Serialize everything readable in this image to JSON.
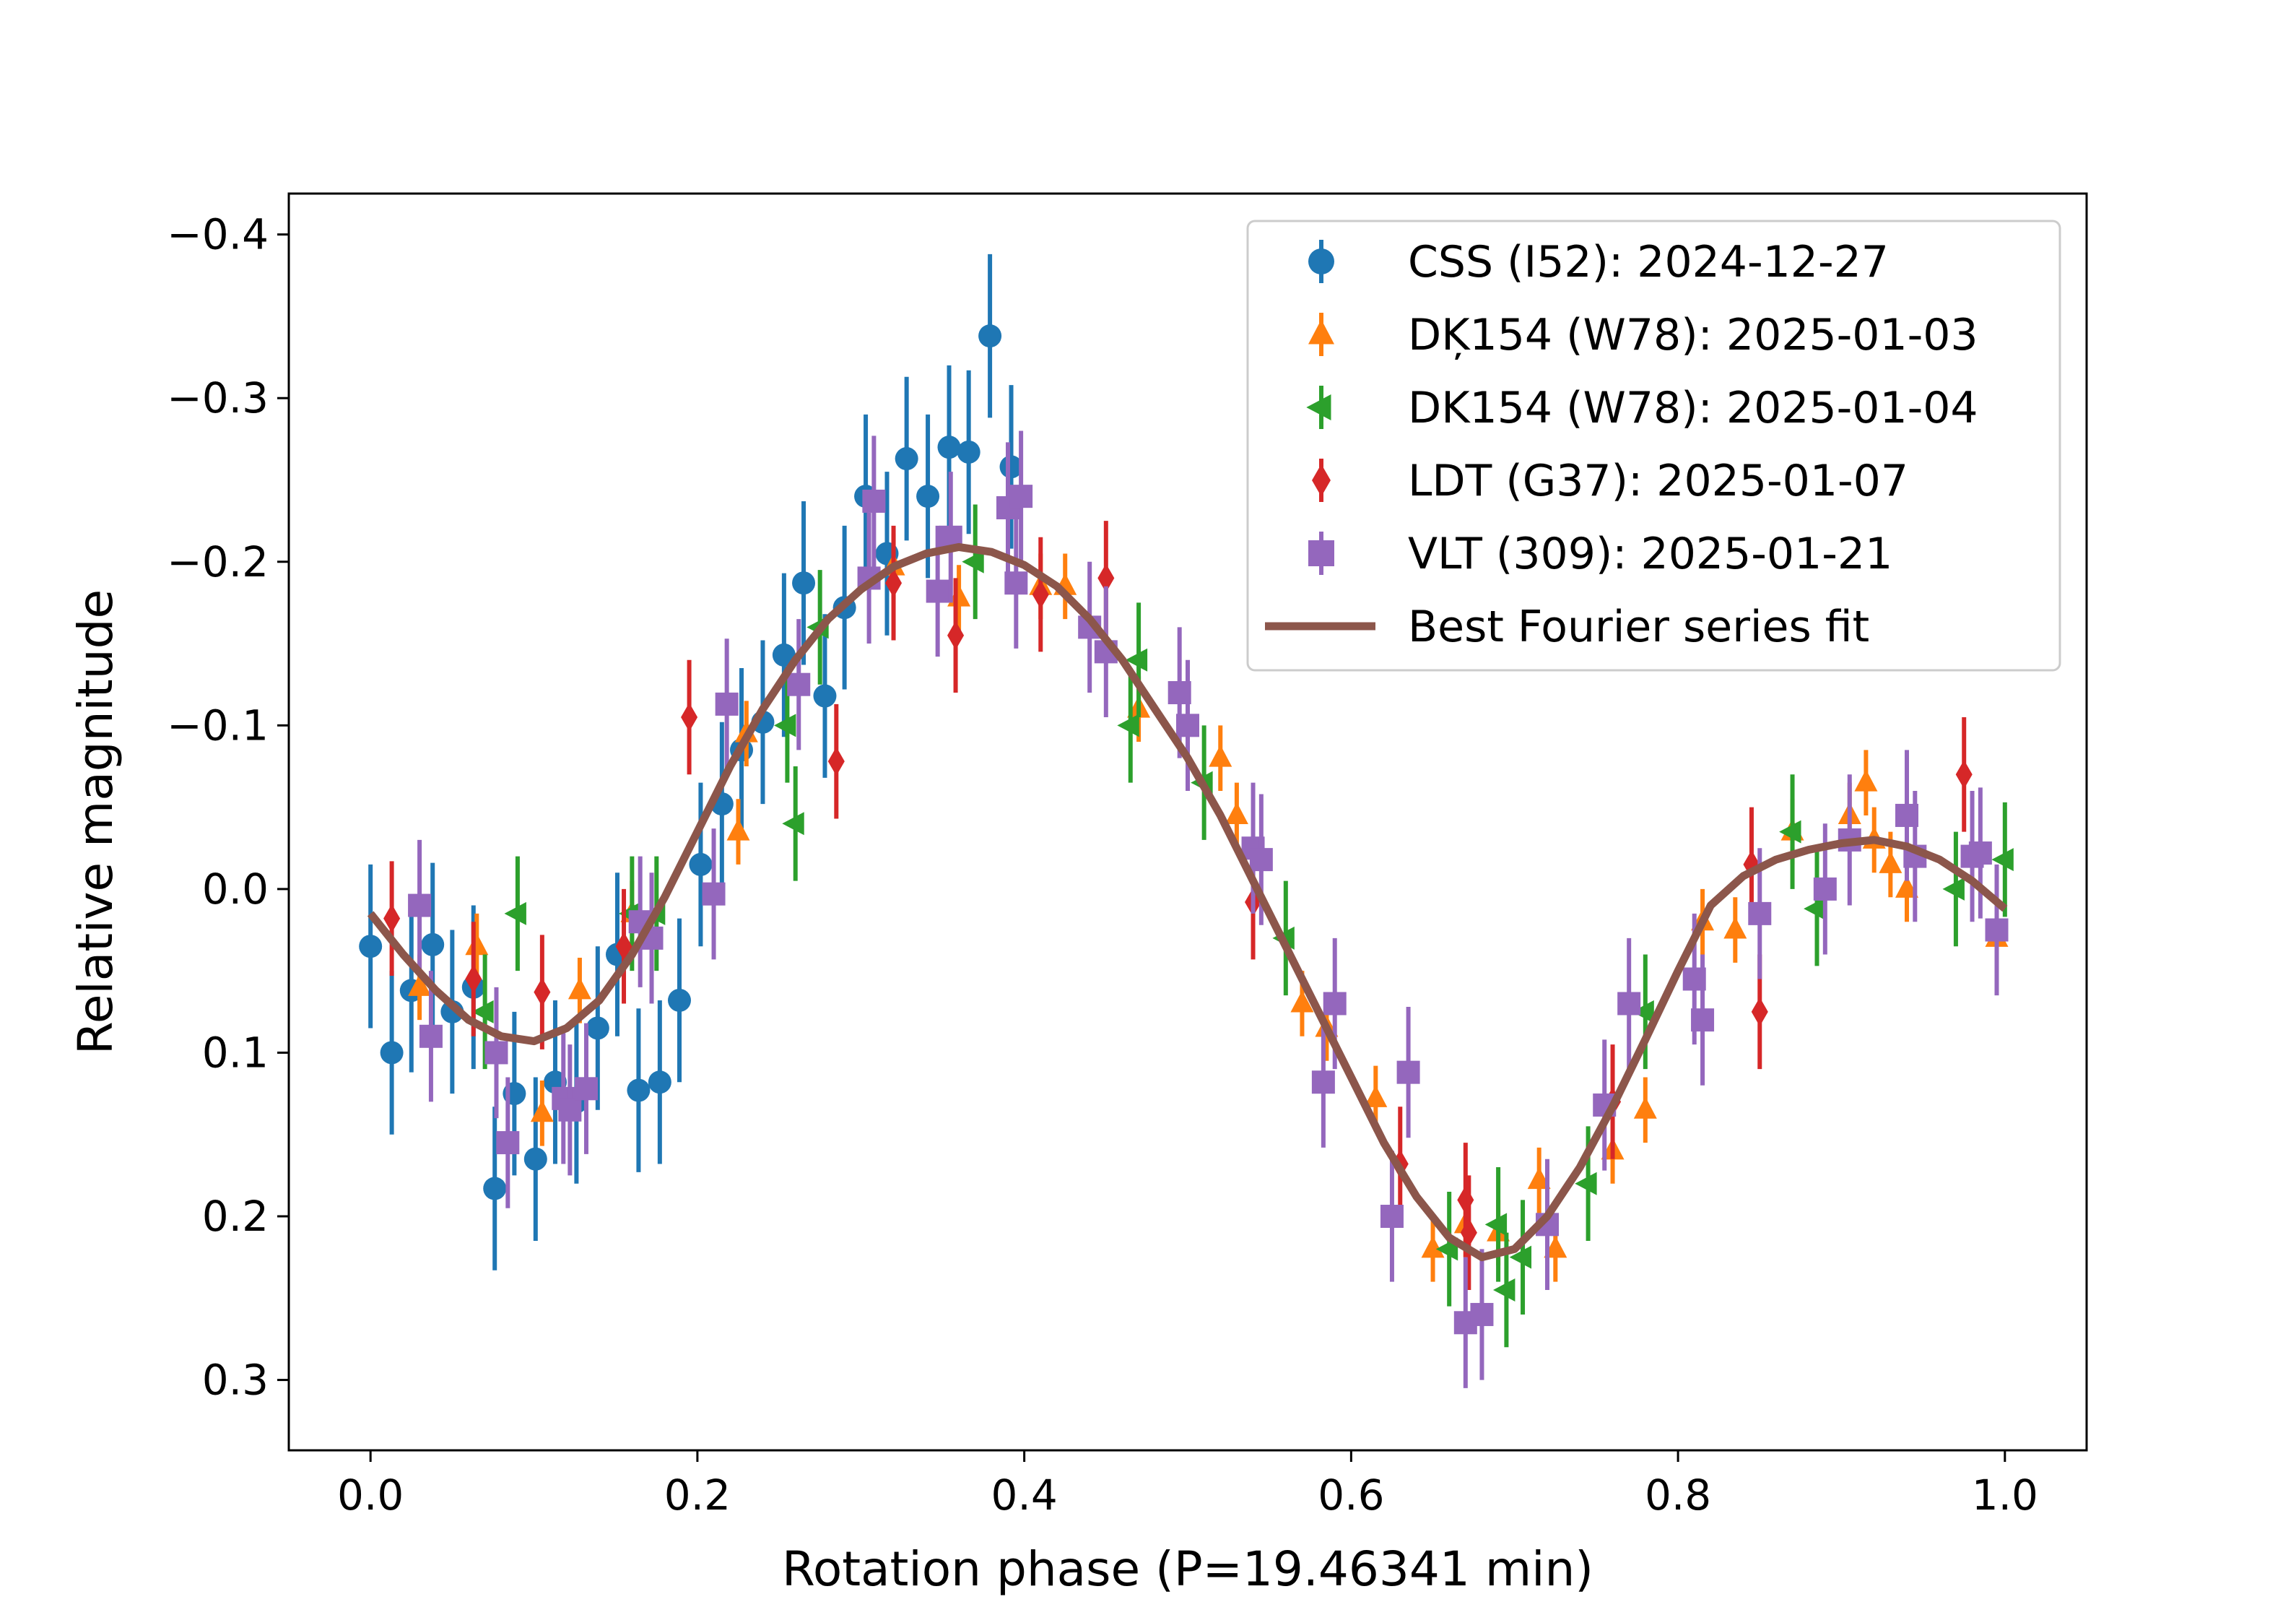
{
  "chart_data": {
    "type": "scatter",
    "title": "",
    "xlabel": "Rotation phase (P=19.46341 min)",
    "ylabel": "Relative magnitude",
    "xlim": [
      -0.05,
      1.05
    ],
    "ylim": [
      0.343,
      -0.425
    ],
    "y_inverted": true,
    "xticks": [
      0.0,
      0.2,
      0.4,
      0.6,
      0.8,
      1.0
    ],
    "xtick_labels": [
      "0.0",
      "0.2",
      "0.4",
      "0.6",
      "0.8",
      "1.0"
    ],
    "yticks": [
      -0.4,
      -0.3,
      -0.2,
      -0.1,
      0.0,
      0.1,
      0.2,
      0.3
    ],
    "ytick_labels": [
      "−0.4",
      "−0.3",
      "−0.2",
      "−0.1",
      "0.0",
      "0.1",
      "0.2",
      "0.3"
    ],
    "grid": false,
    "legend_position": "top-right",
    "series": [
      {
        "name": "CSS (I52): 2024-12-27",
        "marker": "circle",
        "color": "#1f77b4",
        "err": 0.05,
        "points": [
          [
            0.0,
            0.035
          ],
          [
            0.013,
            0.1
          ],
          [
            0.025,
            0.062
          ],
          [
            0.038,
            0.034
          ],
          [
            0.05,
            0.075
          ],
          [
            0.063,
            0.06
          ],
          [
            0.076,
            0.183
          ],
          [
            0.088,
            0.125
          ],
          [
            0.101,
            0.165
          ],
          [
            0.113,
            0.118
          ],
          [
            0.126,
            0.13
          ],
          [
            0.139,
            0.085
          ],
          [
            0.151,
            0.04
          ],
          [
            0.164,
            0.123
          ],
          [
            0.177,
            0.118
          ],
          [
            0.189,
            0.068
          ],
          [
            0.202,
            -0.015
          ],
          [
            0.215,
            -0.052
          ],
          [
            0.227,
            -0.085
          ],
          [
            0.24,
            -0.102
          ],
          [
            0.253,
            -0.143
          ],
          [
            0.265,
            -0.187
          ],
          [
            0.278,
            -0.118
          ],
          [
            0.29,
            -0.172
          ],
          [
            0.303,
            -0.24
          ],
          [
            0.316,
            -0.205
          ],
          [
            0.328,
            -0.263
          ],
          [
            0.341,
            -0.24
          ],
          [
            0.354,
            -0.27
          ],
          [
            0.366,
            -0.267
          ],
          [
            0.379,
            -0.338
          ],
          [
            0.392,
            -0.258
          ]
        ]
      },
      {
        "name": "DĶ154 (W78): 2025-01-03",
        "marker": "triangle-up",
        "color": "#ff7f0e",
        "err": 0.02,
        "points": [
          [
            0.03,
            0.06
          ],
          [
            0.065,
            0.035
          ],
          [
            0.105,
            0.137
          ],
          [
            0.128,
            0.062
          ],
          [
            0.16,
            0.015
          ],
          [
            0.225,
            -0.035
          ],
          [
            0.23,
            -0.095
          ],
          [
            0.32,
            -0.197
          ],
          [
            0.36,
            -0.178
          ],
          [
            0.41,
            -0.185
          ],
          [
            0.425,
            -0.185
          ],
          [
            0.47,
            -0.11
          ],
          [
            0.52,
            -0.08
          ],
          [
            0.53,
            -0.045
          ],
          [
            0.57,
            0.07
          ],
          [
            0.585,
            0.085
          ],
          [
            0.615,
            0.128
          ],
          [
            0.65,
            0.22
          ],
          [
            0.67,
            0.205
          ],
          [
            0.69,
            0.21
          ],
          [
            0.715,
            0.178
          ],
          [
            0.725,
            0.22
          ],
          [
            0.76,
            0.16
          ],
          [
            0.78,
            0.135
          ],
          [
            0.815,
            0.02
          ],
          [
            0.835,
            0.025
          ],
          [
            0.87,
            -0.035
          ],
          [
            0.905,
            -0.045
          ],
          [
            0.915,
            -0.065
          ],
          [
            0.92,
            -0.03
          ],
          [
            0.93,
            -0.015
          ],
          [
            0.94,
            0.0
          ],
          [
            0.995,
            0.03
          ]
        ]
      },
      {
        "name": "DK154 (W78): 2025-01-04",
        "marker": "triangle-left",
        "color": "#2ca02c",
        "err": 0.035,
        "points": [
          [
            0.09,
            0.015
          ],
          [
            0.07,
            0.075
          ],
          [
            0.16,
            0.015
          ],
          [
            0.175,
            0.015
          ],
          [
            0.255,
            -0.1
          ],
          [
            0.26,
            -0.04
          ],
          [
            0.275,
            -0.16
          ],
          [
            0.37,
            -0.2
          ],
          [
            0.465,
            -0.1
          ],
          [
            0.47,
            -0.14
          ],
          [
            0.51,
            -0.065
          ],
          [
            0.56,
            0.03
          ],
          [
            0.66,
            0.22
          ],
          [
            0.69,
            0.205
          ],
          [
            0.695,
            0.245
          ],
          [
            0.705,
            0.225
          ],
          [
            0.745,
            0.18
          ],
          [
            0.78,
            0.075
          ],
          [
            0.87,
            -0.035
          ],
          [
            0.885,
            0.012
          ],
          [
            0.97,
            0.0
          ],
          [
            1.0,
            -0.018
          ]
        ]
      },
      {
        "name": "LDT (G37): 2025-01-07",
        "marker": "diamond",
        "color": "#d62728",
        "err": 0.035,
        "points": [
          [
            0.013,
            0.018
          ],
          [
            0.063,
            0.055
          ],
          [
            0.105,
            0.063
          ],
          [
            0.155,
            0.035
          ],
          [
            0.195,
            -0.105
          ],
          [
            0.285,
            -0.078
          ],
          [
            0.32,
            -0.187
          ],
          [
            0.358,
            -0.155
          ],
          [
            0.41,
            -0.18
          ],
          [
            0.45,
            -0.19
          ],
          [
            0.54,
            0.008
          ],
          [
            0.63,
            0.168
          ],
          [
            0.67,
            0.19
          ],
          [
            0.672,
            0.21
          ],
          [
            0.76,
            0.13
          ],
          [
            0.845,
            -0.015
          ],
          [
            0.85,
            0.075
          ],
          [
            0.975,
            -0.07
          ]
        ]
      },
      {
        "name": "VLT (309): 2025-01-21",
        "marker": "square",
        "color": "#9467bd",
        "err": 0.04,
        "points": [
          [
            0.03,
            0.01
          ],
          [
            0.037,
            0.09
          ],
          [
            0.077,
            0.1
          ],
          [
            0.084,
            0.155
          ],
          [
            0.118,
            0.128
          ],
          [
            0.122,
            0.135
          ],
          [
            0.132,
            0.122
          ],
          [
            0.165,
            0.02
          ],
          [
            0.172,
            0.03
          ],
          [
            0.21,
            0.003
          ],
          [
            0.218,
            -0.113
          ],
          [
            0.262,
            -0.125
          ],
          [
            0.305,
            -0.19
          ],
          [
            0.308,
            -0.237
          ],
          [
            0.347,
            -0.182
          ],
          [
            0.355,
            -0.215
          ],
          [
            0.39,
            -0.233
          ],
          [
            0.395,
            -0.187
          ],
          [
            0.398,
            -0.24
          ],
          [
            0.44,
            -0.16
          ],
          [
            0.45,
            -0.145
          ],
          [
            0.495,
            -0.12
          ],
          [
            0.5,
            -0.1
          ],
          [
            0.54,
            -0.025
          ],
          [
            0.545,
            -0.018
          ],
          [
            0.583,
            0.118
          ],
          [
            0.59,
            0.07
          ],
          [
            0.625,
            0.2
          ],
          [
            0.635,
            0.112
          ],
          [
            0.67,
            0.265
          ],
          [
            0.68,
            0.26
          ],
          [
            0.72,
            0.205
          ],
          [
            0.755,
            0.132
          ],
          [
            0.77,
            0.07
          ],
          [
            0.81,
            0.055
          ],
          [
            0.815,
            0.08
          ],
          [
            0.85,
            0.015
          ],
          [
            0.89,
            0.0
          ],
          [
            0.905,
            -0.03
          ],
          [
            0.94,
            -0.045
          ],
          [
            0.945,
            -0.02
          ],
          [
            0.98,
            -0.02
          ],
          [
            0.985,
            -0.022
          ],
          [
            0.995,
            0.025
          ]
        ]
      }
    ],
    "fit": {
      "name": "Best Fourier series fit",
      "color": "#8c564b",
      "points": [
        [
          0.0,
          0.015
        ],
        [
          0.02,
          0.04
        ],
        [
          0.04,
          0.062
        ],
        [
          0.06,
          0.08
        ],
        [
          0.08,
          0.09
        ],
        [
          0.1,
          0.093
        ],
        [
          0.12,
          0.085
        ],
        [
          0.14,
          0.068
        ],
        [
          0.16,
          0.04
        ],
        [
          0.18,
          0.005
        ],
        [
          0.2,
          -0.035
        ],
        [
          0.22,
          -0.075
        ],
        [
          0.24,
          -0.11
        ],
        [
          0.26,
          -0.14
        ],
        [
          0.28,
          -0.165
        ],
        [
          0.3,
          -0.183
        ],
        [
          0.32,
          -0.197
        ],
        [
          0.34,
          -0.205
        ],
        [
          0.36,
          -0.209
        ],
        [
          0.38,
          -0.206
        ],
        [
          0.4,
          -0.198
        ],
        [
          0.42,
          -0.185
        ],
        [
          0.44,
          -0.165
        ],
        [
          0.46,
          -0.14
        ],
        [
          0.48,
          -0.11
        ],
        [
          0.5,
          -0.08
        ],
        [
          0.52,
          -0.045
        ],
        [
          0.54,
          -0.005
        ],
        [
          0.56,
          0.035
        ],
        [
          0.58,
          0.075
        ],
        [
          0.6,
          0.115
        ],
        [
          0.62,
          0.155
        ],
        [
          0.64,
          0.188
        ],
        [
          0.66,
          0.213
        ],
        [
          0.68,
          0.225
        ],
        [
          0.7,
          0.22
        ],
        [
          0.72,
          0.2
        ],
        [
          0.74,
          0.17
        ],
        [
          0.76,
          0.133
        ],
        [
          0.78,
          0.092
        ],
        [
          0.8,
          0.05
        ],
        [
          0.82,
          0.01
        ],
        [
          0.84,
          -0.008
        ],
        [
          0.86,
          -0.018
        ],
        [
          0.88,
          -0.024
        ],
        [
          0.9,
          -0.028
        ],
        [
          0.92,
          -0.03
        ],
        [
          0.94,
          -0.026
        ],
        [
          0.96,
          -0.018
        ],
        [
          0.98,
          -0.005
        ],
        [
          1.0,
          0.012
        ]
      ]
    }
  }
}
